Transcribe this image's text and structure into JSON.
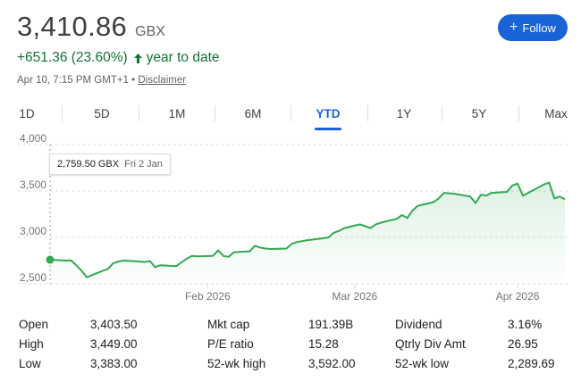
{
  "quote": {
    "price": "3,410.86",
    "currency": "GBX",
    "change": "+651.36 (23.60%)",
    "period": "year to date",
    "timestamp": "Apr 10, 7:15 PM GMT+1 •",
    "disclaimer": "Disclaimer",
    "follow_label": "Follow",
    "colors": {
      "positive": "#137333",
      "accent": "#1a62d8",
      "line": "#34a853"
    }
  },
  "tabs": [
    {
      "label": "1D",
      "active": false
    },
    {
      "label": "5D",
      "active": false
    },
    {
      "label": "1M",
      "active": false
    },
    {
      "label": "6M",
      "active": false
    },
    {
      "label": "YTD",
      "active": true
    },
    {
      "label": "1Y",
      "active": false
    },
    {
      "label": "5Y",
      "active": false
    },
    {
      "label": "Max",
      "active": false
    }
  ],
  "tooltip": {
    "value": "2,759.50 GBX",
    "date": "Fri 2 Jan"
  },
  "chart_data": {
    "type": "area",
    "title": "",
    "xlabel": "",
    "ylabel": "",
    "ylim": [
      2500,
      4000
    ],
    "yticks": [
      "4,000",
      "3,500",
      "3,000",
      "2,500"
    ],
    "ytick_values": [
      4000,
      3500,
      3000,
      2500
    ],
    "xticks": [
      "Feb 2026",
      "Mar 2026",
      "Apr 2026"
    ],
    "xtick_dates": [
      "2026-02-01",
      "2026-03-01",
      "2026-04-01"
    ],
    "xlim": [
      "2026-01-02",
      "2026-04-10"
    ],
    "grid": "horizontal dashed",
    "highlighted_point": {
      "x": "2026-01-02",
      "y": 2759.5
    },
    "series": [
      {
        "x": [
          "2026-01-02",
          "2026-01-05",
          "2026-01-06",
          "2026-01-07",
          "2026-01-08",
          "2026-01-09",
          "2026-01-12",
          "2026-01-13",
          "2026-01-14",
          "2026-01-15",
          "2026-01-16",
          "2026-01-19",
          "2026-01-20",
          "2026-01-21",
          "2026-01-22",
          "2026-01-23",
          "2026-01-26",
          "2026-01-27",
          "2026-01-28",
          "2026-01-29",
          "2026-01-30",
          "2026-02-02",
          "2026-02-03",
          "2026-02-04",
          "2026-02-05",
          "2026-02-06",
          "2026-02-09",
          "2026-02-10",
          "2026-02-11",
          "2026-02-12",
          "2026-02-13",
          "2026-02-16",
          "2026-02-17",
          "2026-02-18",
          "2026-02-19",
          "2026-02-20",
          "2026-02-23",
          "2026-02-24",
          "2026-02-25",
          "2026-02-26",
          "2026-02-27",
          "2026-03-02",
          "2026-03-03",
          "2026-03-04",
          "2026-03-05",
          "2026-03-06",
          "2026-03-09",
          "2026-03-10",
          "2026-03-11",
          "2026-03-12",
          "2026-03-13",
          "2026-03-16",
          "2026-03-17",
          "2026-03-18",
          "2026-03-19",
          "2026-03-20",
          "2026-03-23",
          "2026-03-24",
          "2026-03-25",
          "2026-03-26",
          "2026-03-27",
          "2026-03-30",
          "2026-03-31",
          "2026-04-01",
          "2026-04-02",
          "2026-04-06",
          "2026-04-07",
          "2026-04-08",
          "2026-04-09",
          "2026-04-10"
        ],
        "values": [
          2759.5,
          2750,
          2752,
          2700,
          2640,
          2570,
          2640,
          2660,
          2720,
          2740,
          2750,
          2740,
          2735,
          2745,
          2680,
          2700,
          2690,
          2730,
          2770,
          2800,
          2795,
          2800,
          2860,
          2800,
          2790,
          2840,
          2850,
          2910,
          2890,
          2880,
          2875,
          2880,
          2930,
          2950,
          2960,
          2970,
          2990,
          3000,
          3050,
          3070,
          3100,
          3140,
          3120,
          3100,
          3140,
          3160,
          3200,
          3240,
          3210,
          3290,
          3340,
          3380,
          3420,
          3480,
          3475,
          3470,
          3440,
          3370,
          3460,
          3450,
          3480,
          3490,
          3560,
          3580,
          3450,
          3570,
          3590,
          3420,
          3440,
          3410.86
        ]
      }
    ]
  },
  "stats": {
    "col1": [
      {
        "label": "Open",
        "value": "3,403.50"
      },
      {
        "label": "High",
        "value": "3,449.00"
      },
      {
        "label": "Low",
        "value": "3,383.00"
      }
    ],
    "col2": [
      {
        "label": "Mkt cap",
        "value": "191.39B"
      },
      {
        "label": "P/E ratio",
        "value": "15.28"
      },
      {
        "label": "52-wk high",
        "value": "3,592.00"
      }
    ],
    "col3": [
      {
        "label": "Dividend",
        "value": "3.16%"
      },
      {
        "label": "Qtrly Div Amt",
        "value": "26.95"
      },
      {
        "label": "52-wk low",
        "value": "2,289.69"
      }
    ]
  }
}
